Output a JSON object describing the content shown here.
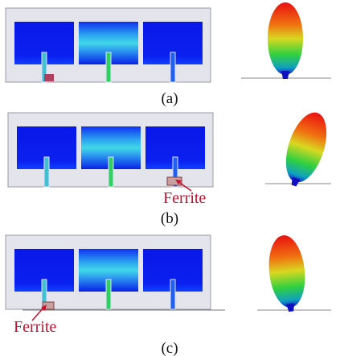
{
  "panels": [
    {
      "label": "(a)"
    },
    {
      "label": "(b)",
      "annotation": "Ferrite"
    },
    {
      "label": "(c)",
      "annotation": "Ferrite"
    }
  ]
}
